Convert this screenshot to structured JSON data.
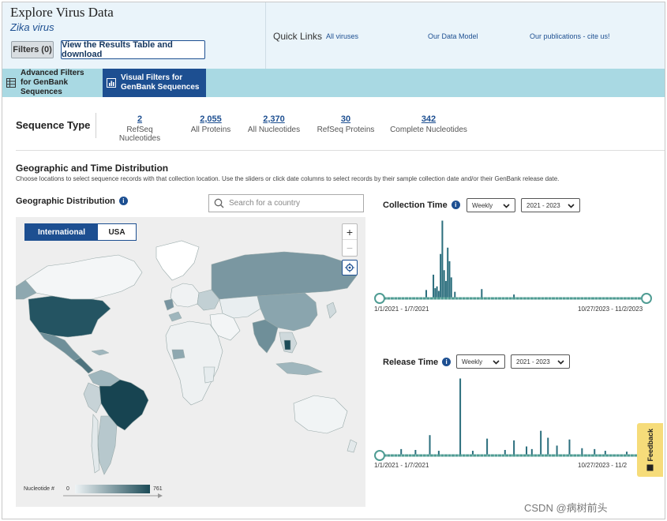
{
  "header": {
    "title": "Explore Virus Data",
    "subtitle": "Zika virus",
    "filters_button": "Filters (0)",
    "results_button": "View the Results Table and download"
  },
  "quick_links": {
    "label": "Quick Links",
    "links": [
      "All viruses",
      "Our Data Model",
      "Our publications - cite us!"
    ]
  },
  "tabs": {
    "advanced": "Advanced Filters for GenBank Sequences",
    "visual": "Visual Filters for GenBank Sequences"
  },
  "sequence_type": {
    "title": "Sequence Type",
    "items": [
      {
        "count": "2",
        "label": "RefSeq Nucleotides"
      },
      {
        "count": "2,055",
        "label": "All Proteins"
      },
      {
        "count": "2,370",
        "label": "All Nucleotides"
      },
      {
        "count": "30",
        "label": "RefSeq Proteins"
      },
      {
        "count": "342",
        "label": "Complete Nucleotides"
      }
    ]
  },
  "geo_time": {
    "title": "Geographic and Time Distribution",
    "description": "Choose locations to select sequence records with that collection location. Use the sliders or click date columns to select records by their sample collection date and/or their GenBank release date."
  },
  "geo_map": {
    "title": "Geographic Distribution",
    "search_placeholder": "Search for a country",
    "tab_international": "International",
    "tab_usa": "USA",
    "zoom_in": "+",
    "zoom_out": "−",
    "legend_label": "Nucleotide #",
    "legend_min": "0",
    "legend_max": "761"
  },
  "collection_time": {
    "title": "Collection Time",
    "interval": "Weekly",
    "years": "2021 - 2023",
    "range_start": "1/1/2021 - 1/7/2021",
    "range_end": "10/27/2023 - 11/2/2023",
    "bars": [
      {
        "week": 1,
        "value": 3
      },
      {
        "week": 26,
        "value": 8
      },
      {
        "week": 30,
        "value": 25
      },
      {
        "week": 31,
        "value": 10
      },
      {
        "week": 32,
        "value": 12
      },
      {
        "week": 33,
        "value": 7
      },
      {
        "week": 34,
        "value": 48
      },
      {
        "week": 35,
        "value": 85
      },
      {
        "week": 36,
        "value": 30
      },
      {
        "week": 37,
        "value": 18
      },
      {
        "week": 38,
        "value": 55
      },
      {
        "week": 39,
        "value": 40
      },
      {
        "week": 40,
        "value": 22
      },
      {
        "week": 42,
        "value": 6
      },
      {
        "week": 57,
        "value": 9
      },
      {
        "week": 75,
        "value": 3
      }
    ]
  },
  "release_time": {
    "title": "Release Time",
    "interval": "Weekly",
    "years": "2021 - 2023",
    "range_start": "1/1/2021 - 1/7/2021",
    "range_end": "10/27/2023 - 11/2",
    "bars": [
      {
        "week": 12,
        "value": 6
      },
      {
        "week": 20,
        "value": 5
      },
      {
        "week": 28,
        "value": 22
      },
      {
        "week": 33,
        "value": 4
      },
      {
        "week": 45,
        "value": 87
      },
      {
        "week": 52,
        "value": 4
      },
      {
        "week": 60,
        "value": 18
      },
      {
        "week": 70,
        "value": 5
      },
      {
        "week": 75,
        "value": 16
      },
      {
        "week": 82,
        "value": 9
      },
      {
        "week": 85,
        "value": 6
      },
      {
        "week": 90,
        "value": 27
      },
      {
        "week": 94,
        "value": 19
      },
      {
        "week": 99,
        "value": 10
      },
      {
        "week": 106,
        "value": 17
      },
      {
        "week": 113,
        "value": 7
      },
      {
        "week": 120,
        "value": 6
      },
      {
        "week": 126,
        "value": 4
      },
      {
        "week": 138,
        "value": 3
      }
    ]
  },
  "feedback": "Feedback",
  "watermark": "CSDN @病树前头"
}
